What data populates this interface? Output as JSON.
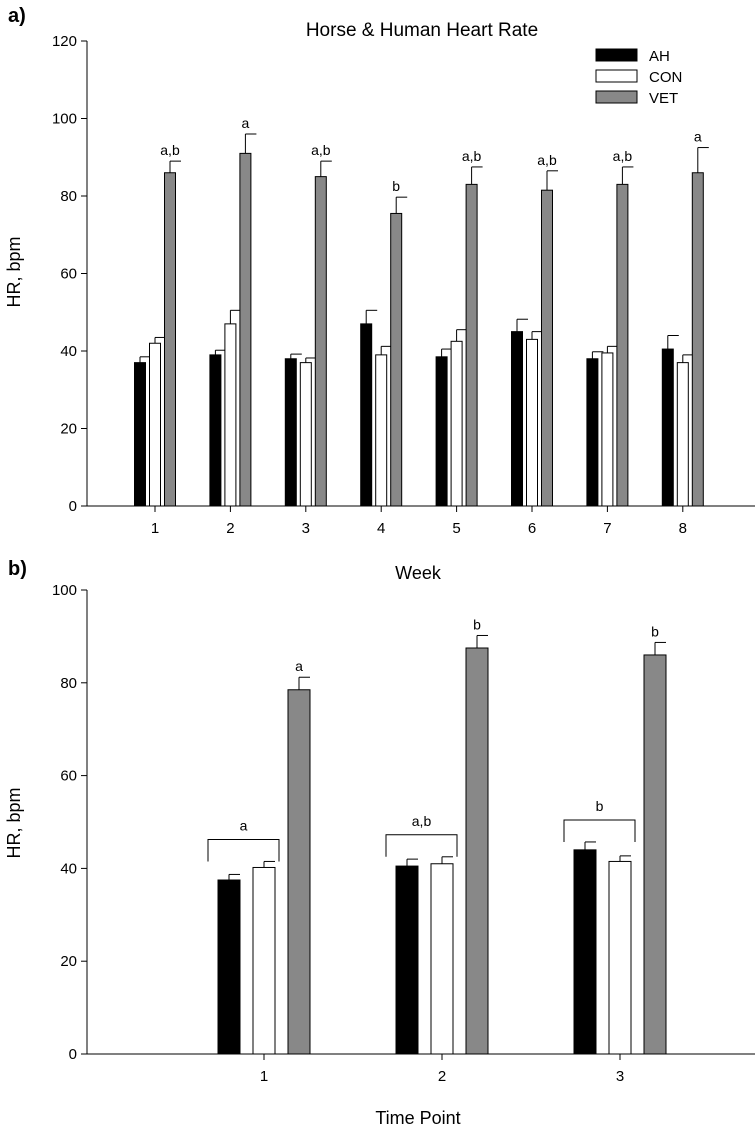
{
  "chart_data": [
    {
      "panel": "a)",
      "type": "bar",
      "title": "Horse & Human Heart Rate",
      "xlabel": "Week",
      "ylabel": "HR, bpm",
      "ylim": [
        0,
        120
      ],
      "yticks": [
        0,
        20,
        40,
        60,
        80,
        100,
        120
      ],
      "categories": [
        "1",
        "2",
        "3",
        "4",
        "5",
        "6",
        "7",
        "8"
      ],
      "series": [
        {
          "name": "AH",
          "color": "#000000",
          "values": [
            37,
            39,
            38,
            47,
            38.5,
            45,
            38,
            40.5
          ],
          "errors": [
            1.5,
            1.2,
            1.2,
            3.5,
            2,
            3.2,
            1.8,
            3.5
          ]
        },
        {
          "name": "CON",
          "color": "#ffffff",
          "values": [
            42,
            47,
            37,
            39,
            42.5,
            43,
            39.5,
            37
          ],
          "errors": [
            1.5,
            3.5,
            1.2,
            2.2,
            3,
            2,
            1.7,
            2
          ]
        },
        {
          "name": "VET",
          "color": "#888888",
          "values": [
            86,
            91,
            85,
            75.5,
            83,
            81.5,
            83,
            86
          ],
          "errors": [
            3,
            5,
            4,
            4.2,
            4.5,
            5,
            4.5,
            6.5
          ]
        }
      ],
      "annotations": [
        "a,b",
        "a",
        "a,b",
        "b",
        "a,b",
        "a,b",
        "a,b",
        "a"
      ],
      "legend": {
        "position": "top-right",
        "entries": [
          "AH",
          "CON",
          "VET"
        ]
      }
    },
    {
      "panel": "b)",
      "type": "bar",
      "title": "",
      "xlabel": "Time Point",
      "ylabel": "HR, bpm",
      "ylim": [
        0,
        100
      ],
      "yticks": [
        0,
        20,
        40,
        60,
        80,
        100
      ],
      "categories": [
        "1",
        "2",
        "3"
      ],
      "series": [
        {
          "name": "AH",
          "color": "#000000",
          "values": [
            37.5,
            40.5,
            44
          ],
          "errors": [
            1.2,
            1.5,
            1.7
          ]
        },
        {
          "name": "CON",
          "color": "#ffffff",
          "values": [
            40.2,
            41,
            41.5
          ],
          "errors": [
            1.3,
            1.5,
            1.2
          ]
        },
        {
          "name": "VET",
          "color": "#888888",
          "values": [
            78.5,
            87.5,
            86
          ],
          "errors": [
            2.7,
            2.7,
            2.7
          ]
        }
      ],
      "vet_annotations": [
        "a",
        "b",
        "b"
      ],
      "bracket_annotations": [
        "a",
        "a,b",
        "b"
      ]
    }
  ]
}
